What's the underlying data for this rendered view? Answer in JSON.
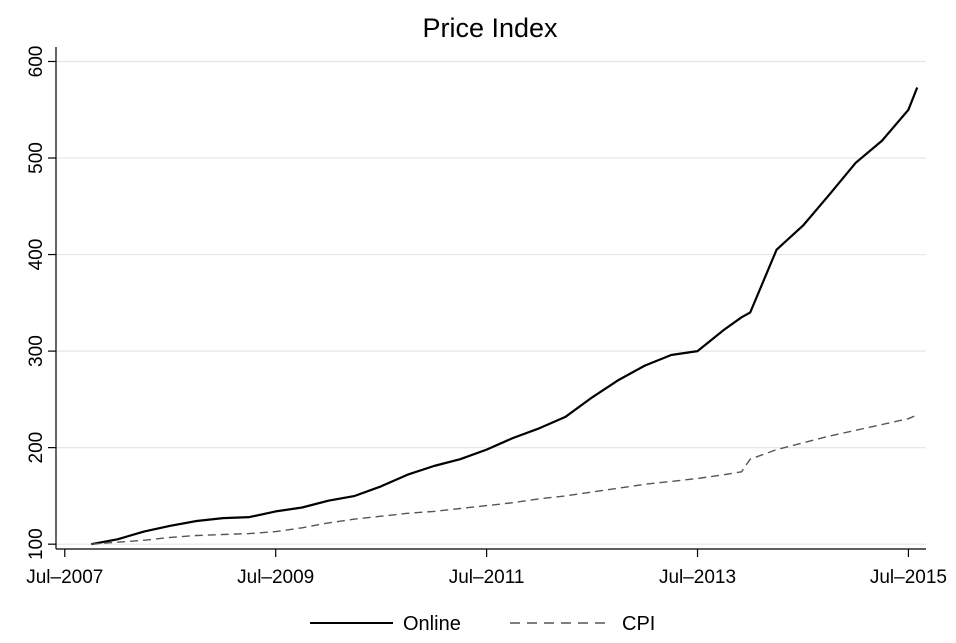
{
  "chart_data": {
    "type": "line",
    "title": "Price Index",
    "xlabel": "",
    "ylabel": "",
    "x_ticks": [
      "Jul–2007",
      "Jul–2009",
      "Jul–2011",
      "Jul–2013",
      "Jul–2015"
    ],
    "x_tick_dates": [
      "2007-07",
      "2009-07",
      "2011-07",
      "2013-07",
      "2015-07"
    ],
    "xlim": [
      "2007-06",
      "2015-09"
    ],
    "y_ticks": [
      100,
      200,
      300,
      400,
      500,
      600
    ],
    "ylim": [
      95,
      615
    ],
    "grid": "horizontal",
    "legend_position": "bottom",
    "series": [
      {
        "name": "Online",
        "style": "solid",
        "color": "#000000",
        "x": [
          "2007-10",
          "2008-01",
          "2008-04",
          "2008-07",
          "2008-10",
          "2009-01",
          "2009-04",
          "2009-07",
          "2009-10",
          "2010-01",
          "2010-04",
          "2010-07",
          "2010-10",
          "2011-01",
          "2011-04",
          "2011-07",
          "2011-10",
          "2012-01",
          "2012-04",
          "2012-07",
          "2012-10",
          "2013-01",
          "2013-04",
          "2013-07",
          "2013-10",
          "2013-12",
          "2014-01",
          "2014-04",
          "2014-07",
          "2014-10",
          "2015-01",
          "2015-04",
          "2015-07",
          "2015-08"
        ],
        "y": [
          100,
          105,
          113,
          119,
          124,
          127,
          128,
          134,
          138,
          145,
          150,
          160,
          172,
          181,
          188,
          198,
          210,
          220,
          232,
          252,
          270,
          285,
          296,
          300,
          322,
          335,
          340,
          405,
          430,
          462,
          495,
          518,
          550,
          573
        ]
      },
      {
        "name": "CPI",
        "style": "dashed",
        "color": "#555555",
        "x": [
          "2007-10",
          "2008-01",
          "2008-04",
          "2008-07",
          "2008-10",
          "2009-01",
          "2009-04",
          "2009-07",
          "2009-10",
          "2010-01",
          "2010-04",
          "2010-07",
          "2010-10",
          "2011-01",
          "2011-04",
          "2011-07",
          "2011-10",
          "2012-01",
          "2012-04",
          "2012-07",
          "2012-10",
          "2013-01",
          "2013-04",
          "2013-07",
          "2013-10",
          "2013-12",
          "2014-01",
          "2014-04",
          "2014-07",
          "2014-10",
          "2015-01",
          "2015-04",
          "2015-07",
          "2015-08"
        ],
        "y": [
          100,
          102,
          104,
          107,
          109,
          110,
          111,
          113,
          117,
          122,
          126,
          129,
          132,
          134,
          137,
          140,
          143,
          147,
          150,
          154,
          158,
          162,
          165,
          168,
          172,
          175,
          188,
          198,
          205,
          212,
          218,
          224,
          230,
          234
        ]
      }
    ]
  }
}
